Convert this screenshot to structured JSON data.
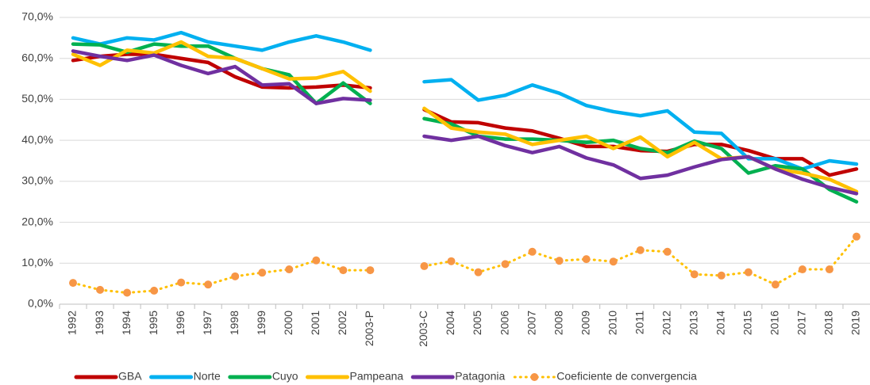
{
  "chart_data": {
    "type": "line",
    "categories": [
      "1992",
      "1993",
      "1994",
      "1995",
      "1996",
      "1997",
      "1998",
      "1999",
      "2000",
      "2001",
      "2002",
      "2003-P",
      null,
      "2003-C",
      "2004",
      "2005",
      "2006",
      "2007",
      "2008",
      "2009",
      "2010",
      "2011",
      "2012",
      "2013",
      "2014",
      "2015",
      "2016",
      "2017",
      "2018",
      "2019"
    ],
    "series": [
      {
        "name": "GBA",
        "color": "#c00000",
        "values": [
          59.5,
          60.5,
          61,
          61,
          60,
          59,
          55.5,
          53,
          52.8,
          53,
          53.5,
          52.8,
          null,
          47.5,
          44.5,
          44.3,
          43,
          42.3,
          40.5,
          38.5,
          38.5,
          37.5,
          37.3,
          39,
          39,
          37.5,
          35.5,
          35.5,
          31.5,
          33
        ]
      },
      {
        "name": "Norte",
        "color": "#00b0f0",
        "values": [
          65,
          63.5,
          65,
          64.5,
          66.3,
          64,
          63,
          62,
          64,
          65.5,
          64,
          62,
          null,
          54.3,
          54.8,
          49.8,
          51,
          53.5,
          51.5,
          48.5,
          47,
          46,
          47.2,
          42,
          41.7,
          35.5,
          35.5,
          33,
          35,
          34.2
        ]
      },
      {
        "name": "Cuyo",
        "color": "#00b050",
        "values": [
          63.5,
          63.3,
          61.5,
          63.5,
          63,
          63,
          60,
          57.5,
          56,
          49,
          54,
          49,
          null,
          45.3,
          44,
          41,
          40.3,
          40.3,
          40,
          39.5,
          40,
          38,
          37,
          39.8,
          38,
          32,
          33.8,
          33,
          28,
          25
        ]
      },
      {
        "name": "Pampeana",
        "color": "#ffc000",
        "values": [
          61,
          58.3,
          62,
          61.3,
          64,
          60.5,
          60,
          57.5,
          55,
          55.2,
          56.8,
          52,
          null,
          47.8,
          43,
          42,
          41.5,
          39,
          40,
          41,
          38,
          40.8,
          36,
          39.5,
          35.5,
          36,
          33,
          32,
          30.5,
          27.5
        ]
      },
      {
        "name": "Patagonia",
        "color": "#7030a0",
        "values": [
          61.8,
          60.5,
          59.5,
          60.8,
          58.3,
          56.3,
          58,
          53.5,
          53.8,
          49,
          50.2,
          49.8,
          null,
          41,
          40,
          41,
          38.7,
          37,
          38.5,
          35.7,
          34,
          30.7,
          31.5,
          33.5,
          35.3,
          36,
          33,
          30.5,
          28.5,
          27
        ]
      },
      {
        "name": "Coeficiente de convergencia",
        "color": "#ffc000",
        "style": "dotted",
        "marker_color": "#f79646",
        "values": [
          5.2,
          3.5,
          2.8,
          3.3,
          5.3,
          4.8,
          6.8,
          7.7,
          8.5,
          10.7,
          8.3,
          8.3,
          null,
          9.3,
          10.5,
          7.8,
          9.8,
          12.8,
          10.6,
          11,
          10.4,
          13.2,
          12.8,
          7.3,
          7,
          7.8,
          4.8,
          8.5,
          8.5,
          16.5
        ]
      }
    ],
    "ylim": [
      0,
      70
    ],
    "yticks": [
      {
        "value": 0,
        "label": "0,0%"
      },
      {
        "value": 10,
        "label": "10,0%"
      },
      {
        "value": 20,
        "label": "20,0%"
      },
      {
        "value": 30,
        "label": "30,0%"
      },
      {
        "value": 40,
        "label": "40,0%"
      },
      {
        "value": 50,
        "label": "50,0%"
      },
      {
        "value": 60,
        "label": "60,0%"
      },
      {
        "value": 70,
        "label": "70,0%"
      }
    ],
    "grid": true,
    "legend": "bottom"
  }
}
